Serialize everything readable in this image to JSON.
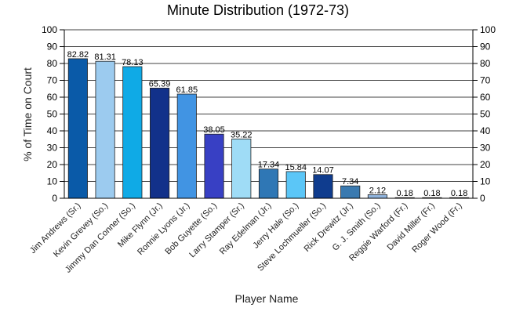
{
  "chart_data": {
    "type": "bar",
    "title": "Minute Distribution (1972-73)",
    "xlabel": "Player Name",
    "ylabel": "% of Time on Court",
    "ylim": [
      0,
      100
    ],
    "yticks": [
      0,
      10,
      20,
      30,
      40,
      50,
      60,
      70,
      80,
      90,
      100
    ],
    "grid": true,
    "legend": "none",
    "categories": [
      "Jim Andrews (Sr.)",
      "Kevin Grevey (So.)",
      "Jimmy Dan Conner (So.)",
      "Mike Flynn (Jr.)",
      "Ronnie Lyons (Jr.)",
      "Bob Guyette (So.)",
      "Larry Stamper (Sr.)",
      "Ray Edelman (Jr.)",
      "Jerry Hale (So.)",
      "Steve Lochmueller (So.)",
      "Rick Drewitz (Jr.)",
      "G. J. Smith (So.)",
      "Reggie Warford (Fr.)",
      "David Miller (Fr.)",
      "Roger Wood (Fr.)"
    ],
    "values": [
      82.82,
      81.31,
      78.13,
      65.39,
      61.85,
      38.05,
      35.22,
      17.34,
      15.84,
      14.07,
      7.34,
      2.12,
      0.18,
      0.18,
      0.18
    ],
    "value_labels": [
      "82.82",
      "81.31",
      "78.13",
      "65.39",
      "61.85",
      "38.05",
      "35.22",
      "17.34",
      "15.84",
      "14.07",
      "7.34",
      "2.12",
      "0.18",
      "0.18",
      "0.18"
    ],
    "colors": [
      "#0a5aa8",
      "#9ccbef",
      "#0faae6",
      "#12318a",
      "#4194e3",
      "#3840c4",
      "#9fdcf6",
      "#2f77b5",
      "#5bc6f7",
      "#0f3c8e",
      "#3a7ab0",
      "#8fb3dc",
      "#5a8fd0",
      "#9bc1e8",
      "#aac8e6"
    ]
  }
}
